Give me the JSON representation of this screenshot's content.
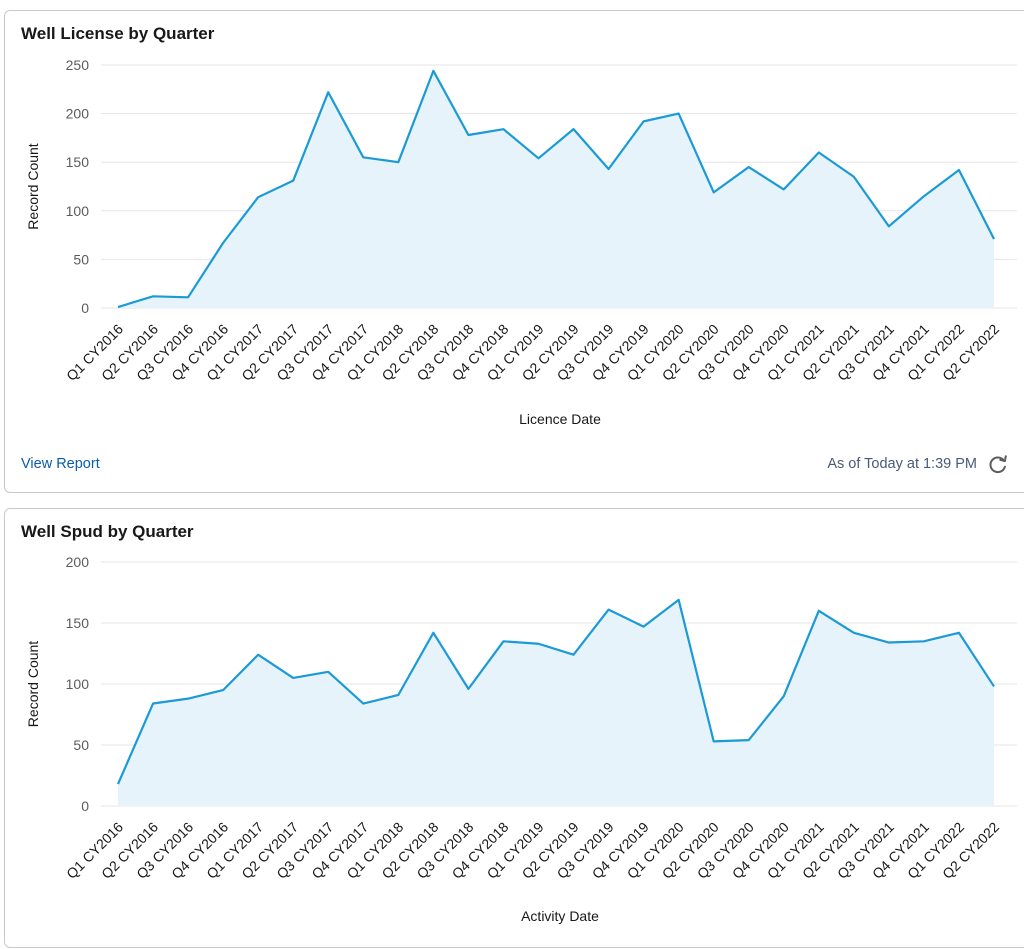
{
  "charts": [
    {
      "title": "Well License by Quarter",
      "footer": {
        "link": "View Report",
        "timestamp": "As of Today at 1:39 PM",
        "refresh_icon": "refresh-icon"
      }
    },
    {
      "title": "Well Spud by Quarter"
    }
  ],
  "colors": {
    "line": "#1b9ad6",
    "fill": "#e6f3fb",
    "grid": "#e5e5e5"
  },
  "chart_data": [
    {
      "type": "area",
      "title": "Well License by Quarter",
      "xlabel": "Licence Date",
      "ylabel": "Record Count",
      "ylim": [
        0,
        250
      ],
      "yticks": [
        0,
        50,
        100,
        150,
        200,
        250
      ],
      "grid": true,
      "categories": [
        "Q1 CY2016",
        "Q2 CY2016",
        "Q3 CY2016",
        "Q4 CY2016",
        "Q1 CY2017",
        "Q2 CY2017",
        "Q3 CY2017",
        "Q4 CY2017",
        "Q1 CY2018",
        "Q2 CY2018",
        "Q3 CY2018",
        "Q4 CY2018",
        "Q1 CY2019",
        "Q2 CY2019",
        "Q3 CY2019",
        "Q4 CY2019",
        "Q1 CY2020",
        "Q2 CY2020",
        "Q3 CY2020",
        "Q4 CY2020",
        "Q1 CY2021",
        "Q2 CY2021",
        "Q3 CY2021",
        "Q4 CY2021",
        "Q1 CY2022",
        "Q2 CY2022"
      ],
      "values": [
        1,
        12,
        11,
        67,
        114,
        131,
        222,
        155,
        150,
        244,
        178,
        184,
        154,
        184,
        143,
        192,
        200,
        119,
        145,
        122,
        160,
        135,
        84,
        115,
        142,
        71
      ]
    },
    {
      "type": "area",
      "title": "Well Spud by Quarter",
      "xlabel": "Activity Date",
      "ylabel": "Record Count",
      "ylim": [
        0,
        200
      ],
      "yticks": [
        0,
        50,
        100,
        150,
        200
      ],
      "grid": true,
      "categories": [
        "Q1 CY2016",
        "Q2 CY2016",
        "Q3 CY2016",
        "Q4 CY2016",
        "Q1 CY2017",
        "Q2 CY2017",
        "Q3 CY2017",
        "Q4 CY2017",
        "Q1 CY2018",
        "Q2 CY2018",
        "Q3 CY2018",
        "Q4 CY2018",
        "Q1 CY2019",
        "Q2 CY2019",
        "Q3 CY2019",
        "Q4 CY2019",
        "Q1 CY2020",
        "Q2 CY2020",
        "Q3 CY2020",
        "Q4 CY2020",
        "Q1 CY2021",
        "Q2 CY2021",
        "Q3 CY2021",
        "Q4 CY2021",
        "Q1 CY2022",
        "Q2 CY2022"
      ],
      "values": [
        18,
        84,
        88,
        95,
        124,
        105,
        110,
        84,
        91,
        142,
        96,
        135,
        133,
        124,
        161,
        147,
        169,
        53,
        54,
        90,
        160,
        142,
        134,
        135,
        142,
        98
      ]
    }
  ]
}
